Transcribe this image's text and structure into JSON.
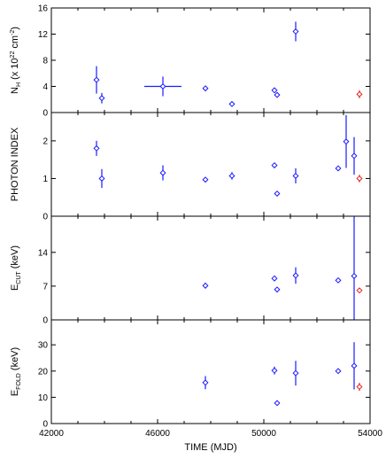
{
  "chart_data": [
    {
      "type": "scatter",
      "ylabel": "N_H (x 10^22 cm^-2)",
      "ylabel_parts": {
        "base": "N",
        "sub": "H",
        "mid": " (x 10",
        "sup1": "22",
        "unit": " cm",
        "sup2": "-2",
        "end": ")"
      },
      "ylim": [
        0,
        16
      ],
      "yticks": [
        0,
        4,
        8,
        12,
        16
      ],
      "xlim": [
        42000,
        54000
      ],
      "grid": false,
      "series": [
        {
          "color": "#1a1aff",
          "points": [
            {
              "x": 43700,
              "y": 5.0,
              "yerr": [
                2.1,
                2.1
              ]
            },
            {
              "x": 43900,
              "y": 2.2,
              "yerr": [
                0.8,
                0.8
              ]
            },
            {
              "x": 46200,
              "y": 4.0,
              "xerr": 700,
              "yerr": [
                1.5,
                1.5
              ]
            },
            {
              "x": 47800,
              "y": 3.7,
              "yerr": [
                0.4,
                0.4
              ]
            },
            {
              "x": 48800,
              "y": 1.3,
              "yerr": [
                0.2,
                0.2
              ]
            },
            {
              "x": 50400,
              "y": 3.4,
              "yerr": [
                0.4,
                0.4
              ]
            },
            {
              "x": 50500,
              "y": 2.7,
              "yerr": [
                0.3,
                0.3
              ]
            },
            {
              "x": 51200,
              "y": 12.4,
              "yerr": [
                1.5,
                1.5
              ]
            }
          ]
        },
        {
          "color": "#e8201c",
          "points": [
            {
              "x": 53600,
              "y": 2.8,
              "yerr": [
                0.6,
                0.6
              ]
            }
          ]
        }
      ]
    },
    {
      "type": "scatter",
      "ylabel": "PHOTON INDEX",
      "ylim": [
        0,
        2.75
      ],
      "yticks": [
        0,
        1,
        2
      ],
      "xlim": [
        42000,
        54000
      ],
      "grid": false,
      "series": [
        {
          "color": "#1a1aff",
          "points": [
            {
              "x": 43700,
              "y": 1.8,
              "yerr": [
                0.2,
                0.2
              ]
            },
            {
              "x": 43900,
              "y": 1.0,
              "yerr": [
                0.25,
                0.25
              ]
            },
            {
              "x": 46200,
              "y": 1.15,
              "yerr": [
                0.2,
                0.2
              ]
            },
            {
              "x": 47800,
              "y": 0.97,
              "yerr": [
                0.05,
                0.05
              ]
            },
            {
              "x": 48800,
              "y": 1.07,
              "yerr": [
                0.1,
                0.1
              ]
            },
            {
              "x": 50400,
              "y": 1.35,
              "yerr": [
                0.05,
                0.05
              ]
            },
            {
              "x": 50500,
              "y": 0.6,
              "yerr": [
                0.05,
                0.05
              ]
            },
            {
              "x": 51200,
              "y": 1.07,
              "yerr": [
                0.2,
                0.2
              ]
            },
            {
              "x": 52800,
              "y": 1.27,
              "yerr": [
                0.05,
                0.05
              ]
            },
            {
              "x": 53100,
              "y": 1.98,
              "yerr": [
                0.7,
                0.7
              ]
            },
            {
              "x": 53400,
              "y": 1.6,
              "yerr": [
                0.5,
                0.5
              ]
            }
          ]
        },
        {
          "color": "#e8201c",
          "points": [
            {
              "x": 53600,
              "y": 1.0,
              "yerr": [
                0.1,
                0.1
              ]
            }
          ]
        }
      ]
    },
    {
      "type": "scatter",
      "ylabel": "E_CUT (keV)",
      "ylabel_parts": {
        "base": "E",
        "sub": "CUT",
        "unit": " (keV)"
      },
      "ylim": [
        0,
        21.5
      ],
      "yticks": [
        0,
        7,
        14
      ],
      "xlim": [
        42000,
        54000
      ],
      "grid": false,
      "series": [
        {
          "color": "#1a1aff",
          "points": [
            {
              "x": 47800,
              "y": 7.1,
              "yerr": [
                0.6,
                0.6
              ]
            },
            {
              "x": 50400,
              "y": 8.6,
              "yerr": [
                0.3,
                0.3
              ]
            },
            {
              "x": 50500,
              "y": 6.3,
              "yerr": [
                0.3,
                0.3
              ]
            },
            {
              "x": 51200,
              "y": 9.2,
              "yerr": [
                1.7,
                1.7
              ]
            },
            {
              "x": 52800,
              "y": 8.2,
              "yerr": [
                0.3,
                0.3
              ]
            },
            {
              "x": 53400,
              "y": 9.1,
              "yerr": [
                9.1,
                12.3
              ]
            }
          ]
        },
        {
          "color": "#e8201c",
          "points": [
            {
              "x": 53600,
              "y": 6.1,
              "yerr": [
                0.4,
                0.4
              ]
            }
          ]
        }
      ]
    },
    {
      "type": "scatter",
      "ylabel": "E_FOLD (keV)",
      "ylabel_parts": {
        "base": "E",
        "sub": "FOLD",
        "unit": " (keV)"
      },
      "xlabel": "TIME (MJD)",
      "ylim": [
        0,
        39.5
      ],
      "yticks": [
        0,
        10,
        20,
        30
      ],
      "xlim": [
        42000,
        54000
      ],
      "xticks": [
        42000,
        46000,
        50000,
        54000
      ],
      "grid": false,
      "series": [
        {
          "color": "#1a1aff",
          "points": [
            {
              "x": 47800,
              "y": 15.6,
              "yerr": [
                2.5,
                2.5
              ]
            },
            {
              "x": 50400,
              "y": 20.2,
              "yerr": [
                1.5,
                1.5
              ]
            },
            {
              "x": 50500,
              "y": 7.8,
              "yerr": [
                0.5,
                0.5
              ]
            },
            {
              "x": 51200,
              "y": 19.2,
              "yerr": [
                4.7,
                4.7
              ]
            },
            {
              "x": 52800,
              "y": 20.0,
              "yerr": [
                0.5,
                0.5
              ]
            },
            {
              "x": 53400,
              "y": 22.0,
              "yerr": [
                9.0,
                9.0
              ]
            }
          ]
        },
        {
          "color": "#e8201c",
          "points": [
            {
              "x": 53600,
              "y": 14.0,
              "yerr": [
                1.5,
                1.5
              ]
            }
          ]
        }
      ]
    }
  ]
}
